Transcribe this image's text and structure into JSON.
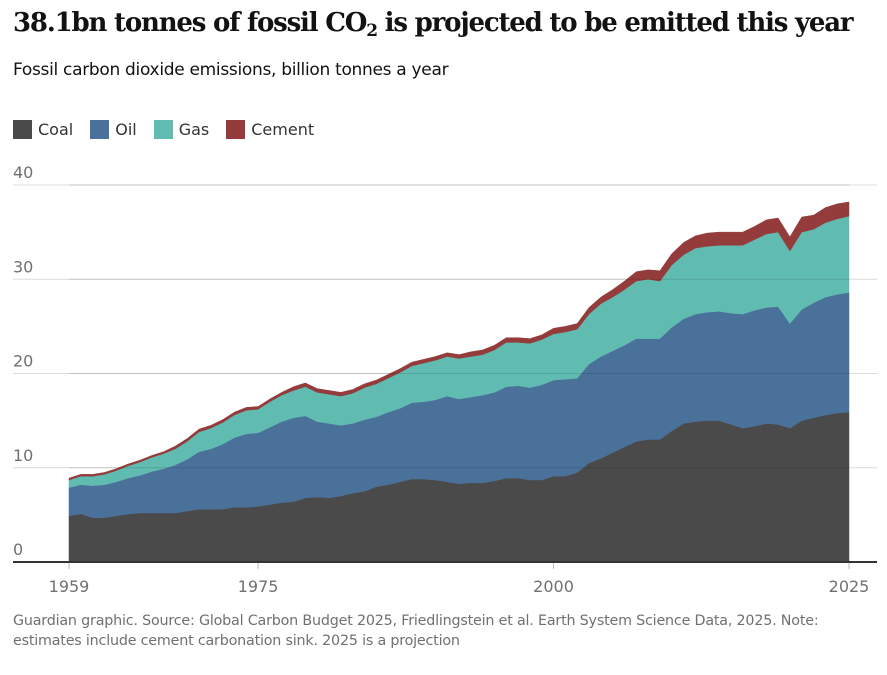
{
  "header": {
    "title_main": "38.1bn tonnes of fossil CO",
    "title_sub": "2",
    "title_rest": " is projected to be emitted this year",
    "subtitle": "Fossil carbon dioxide emissions, billion tonnes a year"
  },
  "legend": [
    {
      "label": "Coal",
      "color": "#4a4a4a"
    },
    {
      "label": "Oil",
      "color": "#4a7199"
    },
    {
      "label": "Gas",
      "color": "#60bcb0"
    },
    {
      "label": "Cement",
      "color": "#943c3c"
    }
  ],
  "footer": "Guardian graphic. Source: Global Carbon Budget 2025, Friedlingstein et al. Earth System Science Data, 2025. Note: estimates include cement carbonation sink. 2025 is a projection",
  "chart_data": {
    "type": "area",
    "stacked": true,
    "title": "38.1bn tonnes of fossil CO2 is projected to be emitted this year",
    "subtitle": "Fossil carbon dioxide emissions, billion tonnes a year",
    "xlabel": "",
    "ylabel": "",
    "xlim": [
      1959,
      2025
    ],
    "ylim": [
      0,
      40
    ],
    "x_ticks": [
      1959,
      1975,
      2000,
      2025
    ],
    "y_ticks": [
      0,
      10,
      20,
      30,
      40
    ],
    "grid": true,
    "legend_position": "top-left",
    "x": [
      1959,
      1960,
      1961,
      1962,
      1963,
      1964,
      1965,
      1966,
      1967,
      1968,
      1969,
      1970,
      1971,
      1972,
      1973,
      1974,
      1975,
      1976,
      1977,
      1978,
      1979,
      1980,
      1981,
      1982,
      1983,
      1984,
      1985,
      1986,
      1987,
      1988,
      1989,
      1990,
      1991,
      1992,
      1993,
      1994,
      1995,
      1996,
      1997,
      1998,
      1999,
      2000,
      2001,
      2002,
      2003,
      2004,
      2005,
      2006,
      2007,
      2008,
      2009,
      2010,
      2011,
      2012,
      2013,
      2014,
      2015,
      2016,
      2017,
      2018,
      2019,
      2020,
      2021,
      2022,
      2023,
      2024,
      2025
    ],
    "series": [
      {
        "name": "Coal",
        "color": "#4a4a4a",
        "values": [
          4.9,
          5.1,
          4.7,
          4.7,
          4.9,
          5.1,
          5.2,
          5.2,
          5.2,
          5.2,
          5.4,
          5.6,
          5.6,
          5.6,
          5.8,
          5.8,
          5.9,
          6.1,
          6.3,
          6.4,
          6.8,
          6.9,
          6.8,
          7.0,
          7.3,
          7.5,
          8.0,
          8.2,
          8.5,
          8.8,
          8.8,
          8.7,
          8.5,
          8.3,
          8.4,
          8.4,
          8.6,
          8.9,
          8.9,
          8.7,
          8.7,
          9.1,
          9.1,
          9.5,
          10.5,
          11.0,
          11.6,
          12.2,
          12.8,
          13.0,
          13.0,
          13.9,
          14.7,
          14.9,
          15.0,
          15.0,
          14.6,
          14.2,
          14.4,
          14.7,
          14.6,
          14.2,
          15.0,
          15.3,
          15.6,
          15.8,
          15.9
        ]
      },
      {
        "name": "Oil",
        "color": "#4a7199",
        "values": [
          3.0,
          3.1,
          3.4,
          3.5,
          3.6,
          3.8,
          4.0,
          4.4,
          4.7,
          5.1,
          5.5,
          6.1,
          6.4,
          6.9,
          7.4,
          7.8,
          7.8,
          8.2,
          8.6,
          8.9,
          8.7,
          8.0,
          7.9,
          7.5,
          7.4,
          7.6,
          7.4,
          7.7,
          7.8,
          8.1,
          8.2,
          8.5,
          9.1,
          9.0,
          9.1,
          9.3,
          9.4,
          9.7,
          9.8,
          9.8,
          10.1,
          10.2,
          10.3,
          10.0,
          10.5,
          10.8,
          10.8,
          10.8,
          10.9,
          10.7,
          10.7,
          11.0,
          11.1,
          11.4,
          11.5,
          11.6,
          11.8,
          12.1,
          12.3,
          12.3,
          12.5,
          11.1,
          11.8,
          12.2,
          12.5,
          12.6,
          12.7
        ]
      },
      {
        "name": "Gas",
        "color": "#60bcb0",
        "values": [
          0.8,
          0.9,
          1.0,
          1.1,
          1.2,
          1.3,
          1.4,
          1.5,
          1.6,
          1.7,
          1.9,
          2.1,
          2.2,
          2.3,
          2.4,
          2.5,
          2.5,
          2.7,
          2.8,
          2.9,
          3.1,
          3.1,
          3.1,
          3.1,
          3.2,
          3.4,
          3.5,
          3.6,
          3.8,
          3.9,
          4.1,
          4.2,
          4.2,
          4.3,
          4.3,
          4.3,
          4.5,
          4.7,
          4.6,
          4.7,
          4.8,
          4.9,
          5.0,
          5.2,
          5.3,
          5.6,
          5.7,
          5.9,
          6.1,
          6.3,
          6.1,
          6.6,
          6.8,
          7.0,
          7.0,
          7.0,
          7.2,
          7.3,
          7.5,
          7.8,
          7.9,
          7.7,
          8.2,
          7.8,
          7.9,
          8.0,
          8.1
        ]
      },
      {
        "name": "Cement",
        "color": "#943c3c",
        "values": [
          0.2,
          0.2,
          0.2,
          0.2,
          0.2,
          0.2,
          0.2,
          0.2,
          0.2,
          0.3,
          0.3,
          0.3,
          0.3,
          0.3,
          0.3,
          0.3,
          0.3,
          0.3,
          0.3,
          0.4,
          0.4,
          0.4,
          0.4,
          0.4,
          0.4,
          0.4,
          0.4,
          0.4,
          0.4,
          0.4,
          0.4,
          0.4,
          0.4,
          0.4,
          0.5,
          0.5,
          0.5,
          0.5,
          0.5,
          0.5,
          0.5,
          0.6,
          0.6,
          0.6,
          0.7,
          0.7,
          0.8,
          0.9,
          1.0,
          1.0,
          1.1,
          1.2,
          1.3,
          1.3,
          1.4,
          1.4,
          1.4,
          1.4,
          1.4,
          1.5,
          1.5,
          1.5,
          1.6,
          1.5,
          1.6,
          1.6,
          1.5
        ]
      }
    ]
  }
}
